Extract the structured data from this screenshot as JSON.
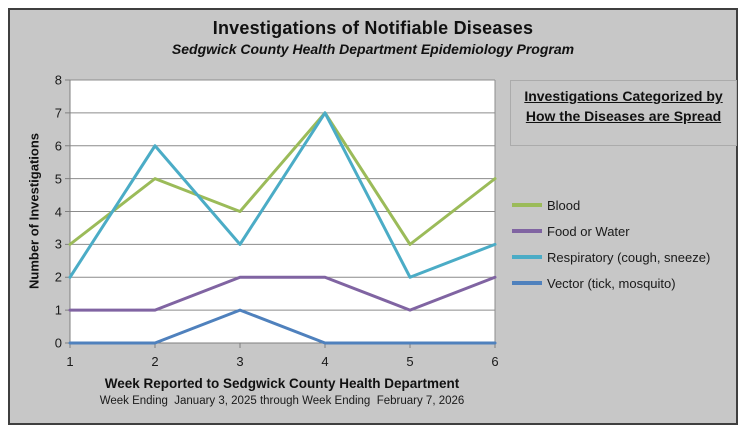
{
  "header": {
    "title": "Investigations of Notifiable Diseases",
    "subtitle": "Sedgwick County Health Department Epidemiology Program"
  },
  "legend_box": {
    "title": "Investigations Categorized by How the Diseases are Spread"
  },
  "colors": {
    "canvas_bg": "#C7C7C7",
    "frame_border": "#3F3F3F",
    "plot_bg": "#FFFFFF",
    "gridline": "#8C8C8C",
    "axis": "#7F7F7F"
  },
  "chart_data": {
    "type": "line",
    "x": [
      1,
      2,
      3,
      4,
      5,
      6
    ],
    "series": [
      {
        "name": "Blood",
        "color": "#9BBB59",
        "values": [
          3,
          5,
          4,
          7,
          3,
          5
        ]
      },
      {
        "name": "Food or Water",
        "color": "#8064A2",
        "values": [
          1,
          1,
          2,
          2,
          1,
          2
        ]
      },
      {
        "name": "Respiratory (cough, sneeze)",
        "color": "#4BACC6",
        "values": [
          2,
          6,
          3,
          7,
          2,
          3
        ]
      },
      {
        "name": "Vector (tick, mosquito)",
        "color": "#4F81BD",
        "values": [
          0,
          0,
          1,
          0,
          0,
          0
        ]
      }
    ],
    "title": "Investigations of Notifiable Diseases",
    "subtitle": "Sedgwick County Health Department Epidemiology Program",
    "xlabel": "Week Reported to Sedgwick County Health Department",
    "xlabel_sub": "Week Ending  January 3, 2025 through Week Ending  February 7, 2026",
    "ylabel": "Number of Investigations",
    "ylim": [
      0,
      8
    ],
    "yticks": [
      0,
      1,
      2,
      3,
      4,
      5,
      6,
      7,
      8
    ],
    "grid": true,
    "legend_position": "right"
  }
}
